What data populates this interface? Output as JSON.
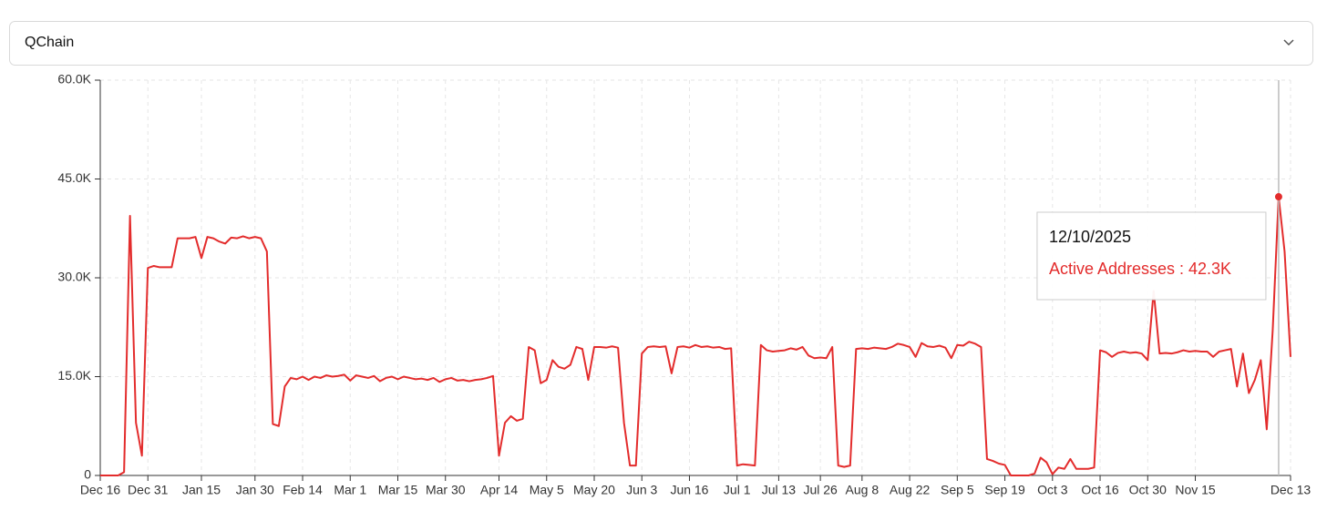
{
  "dropdown": "QChain",
  "chart_data": {
    "type": "line",
    "categories": [
      "Dec 16",
      null,
      null,
      null,
      null,
      null,
      null,
      null,
      "Dec 31",
      null,
      null,
      null,
      null,
      null,
      null,
      null,
      null,
      "Jan 15",
      null,
      null,
      null,
      null,
      null,
      null,
      null,
      null,
      "Jan 30",
      null,
      null,
      null,
      null,
      null,
      null,
      null,
      "Feb 14",
      null,
      null,
      null,
      null,
      null,
      null,
      null,
      "Mar 1",
      null,
      null,
      null,
      null,
      null,
      null,
      null,
      "Mar 15",
      null,
      null,
      null,
      null,
      null,
      null,
      null,
      "Mar 30",
      null,
      null,
      null,
      null,
      null,
      null,
      null,
      null,
      "Apr 14",
      null,
      null,
      null,
      null,
      null,
      null,
      null,
      "May 5",
      null,
      null,
      null,
      null,
      null,
      null,
      null,
      "May 20",
      null,
      null,
      null,
      null,
      null,
      null,
      null,
      "Jun 3",
      null,
      null,
      null,
      null,
      null,
      null,
      null,
      "Jun 16",
      null,
      null,
      null,
      null,
      null,
      null,
      null,
      "Jul 1",
      null,
      null,
      null,
      null,
      null,
      null,
      "Jul 13",
      null,
      null,
      null,
      null,
      null,
      null,
      "Jul 26",
      null,
      null,
      null,
      null,
      null,
      null,
      "Aug 8",
      null,
      null,
      null,
      null,
      null,
      null,
      null,
      "Aug 22",
      null,
      null,
      null,
      null,
      null,
      null,
      null,
      "Sep 5",
      null,
      null,
      null,
      null,
      null,
      null,
      null,
      "Sep 19",
      null,
      null,
      null,
      null,
      null,
      null,
      null,
      "Oct 3",
      null,
      null,
      null,
      null,
      null,
      null,
      null,
      "Oct 16",
      null,
      null,
      null,
      null,
      null,
      null,
      null,
      "Oct 30",
      null,
      null,
      null,
      null,
      null,
      null,
      null,
      "Nov 15",
      null,
      null,
      null,
      null,
      null,
      null,
      null,
      null,
      null,
      null,
      null,
      null,
      null,
      null,
      null,
      "Dec 13"
    ],
    "series": [
      {
        "color": "#e32c2c",
        "values": [
          0,
          0,
          0,
          0,
          500,
          39400,
          8000,
          3000,
          31500,
          31800,
          31600,
          31600,
          31600,
          36000,
          36000,
          36000,
          36200,
          33000,
          36200,
          36000,
          35500,
          35200,
          36100,
          36000,
          36300,
          36000,
          36200,
          36000,
          34000,
          7800,
          7500,
          13500,
          14800,
          14600,
          15000,
          14500,
          15000,
          14800,
          15200,
          15000,
          15100,
          15300,
          14400,
          15200,
          15000,
          14800,
          15100,
          14300,
          14800,
          15000,
          14600,
          15000,
          14800,
          14600,
          14700,
          14500,
          14800,
          14200,
          14600,
          14800,
          14400,
          14500,
          14300,
          14500,
          14600,
          14800,
          15100,
          3000,
          8000,
          9000,
          8300,
          8600,
          19500,
          19000,
          14000,
          14500,
          17500,
          16500,
          16200,
          16800,
          19500,
          19200,
          14500,
          19500,
          19500,
          19400,
          19600,
          19400,
          8000,
          1500,
          1500,
          18500,
          19500,
          19600,
          19500,
          19600,
          15500,
          19500,
          19600,
          19400,
          19800,
          19500,
          19600,
          19400,
          19500,
          19200,
          19300,
          1500,
          1700,
          1600,
          1500,
          19800,
          19000,
          18800,
          18900,
          19000,
          19300,
          19100,
          19500,
          18200,
          17800,
          17900,
          17800,
          19500,
          1500,
          1300,
          1500,
          19200,
          19300,
          19200,
          19400,
          19300,
          19200,
          19500,
          20000,
          19800,
          19500,
          18000,
          20100,
          19600,
          19500,
          19700,
          19400,
          17800,
          19800,
          19700,
          20300,
          20000,
          19500,
          2500,
          2200,
          1800,
          1600,
          0,
          0,
          0,
          0,
          300,
          2700,
          2000,
          200,
          1200,
          1000,
          2500,
          1000,
          1000,
          1000,
          1200,
          19000,
          18700,
          18000,
          18600,
          18800,
          18600,
          18700,
          18500,
          17500,
          28000,
          18500,
          18600,
          18500,
          18700,
          19000,
          18800,
          18900,
          18800,
          18800,
          18000,
          18800,
          19000,
          19200,
          13500,
          18500,
          12500,
          14500,
          17500,
          7000,
          22000,
          42300,
          34000,
          18000
        ]
      }
    ],
    "ylim": [
      0,
      60000
    ],
    "yticks": [
      0,
      {
        "value": 15000,
        "label": "15.0K"
      },
      {
        "value": 30000,
        "label": "30.0K"
      },
      {
        "value": 45000,
        "label": "45.0K"
      },
      {
        "value": 60000,
        "label": "60.0K"
      }
    ],
    "grid": true,
    "tooltip": {
      "title": "12/10/2025",
      "text": "Active Addresses : 42.3K"
    }
  }
}
